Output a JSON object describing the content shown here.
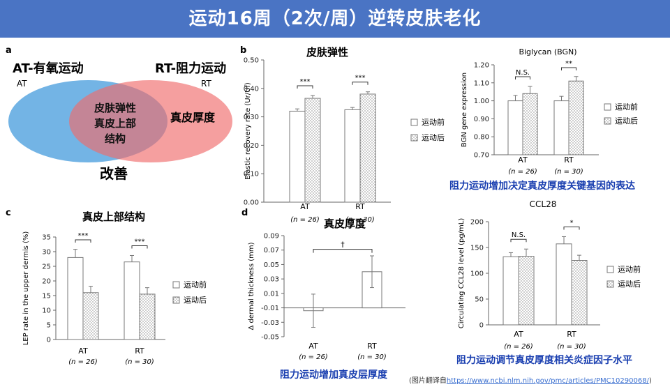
{
  "header": {
    "title": "运动16周（2次/周）逆转皮肤老化"
  },
  "panel_a": {
    "letter": "a",
    "at_title": "AT-有氧运动",
    "rt_title": "RT-阻力运动",
    "at_small": "AT",
    "rt_small": "RT",
    "overlap_lines": [
      "皮肤弹性",
      "真皮上部",
      "结构"
    ],
    "rt_only": "真皮厚度",
    "caption": "改善",
    "colors": {
      "at": "#5aa7e0",
      "rt": "#f06b6b",
      "overlap": "#b3505a"
    }
  },
  "legend": {
    "before": "运动前",
    "after": "运动后"
  },
  "group_labels": {
    "at": "AT",
    "rt": "RT",
    "n_at": "(n = 26)",
    "n_rt": "(n = 30)"
  },
  "chart_data": [
    {
      "id": "b",
      "letter": "b",
      "type": "bar",
      "title": "皮肤弹性",
      "ylabel": "Elastic recovery rate (Ur/Uf)",
      "ylim": [
        0.0,
        0.5
      ],
      "yticks": [
        "0.00",
        "0.10",
        "0.20",
        "0.30",
        "0.40",
        "0.50"
      ],
      "categories": [
        "AT",
        "RT"
      ],
      "series": [
        {
          "name": "运动前",
          "values": [
            0.32,
            0.325
          ],
          "err": [
            0.008,
            0.008
          ]
        },
        {
          "name": "运动后",
          "values": [
            0.365,
            0.38
          ],
          "err": [
            0.01,
            0.008
          ]
        }
      ],
      "sig": [
        "***",
        "***"
      ]
    },
    {
      "id": "bgn",
      "type": "bar",
      "title": "Biglycan (BGN)",
      "ylabel": "BGN gene expression",
      "ylim": [
        0.7,
        1.2
      ],
      "yticks": [
        "0.70",
        "0.80",
        "0.90",
        "1.00",
        "1.10",
        "1.20"
      ],
      "categories": [
        "AT",
        "RT"
      ],
      "series": [
        {
          "name": "运动前",
          "values": [
            1.0,
            1.0
          ],
          "err": [
            0.03,
            0.025
          ]
        },
        {
          "name": "运动后",
          "values": [
            1.04,
            1.11
          ],
          "err": [
            0.04,
            0.025
          ]
        }
      ],
      "sig": [
        "N.S.",
        "**"
      ],
      "caption": "阻力运动增加决定真皮厚度关键基因的表达"
    },
    {
      "id": "c",
      "letter": "c",
      "type": "bar",
      "title": "真皮上部结构",
      "ylabel": "LEP rate in the upper dermis (%)",
      "ylim": [
        0,
        35
      ],
      "yticks": [
        "0",
        "5",
        "10",
        "15",
        "20",
        "25",
        "30",
        "35"
      ],
      "categories": [
        "AT",
        "RT"
      ],
      "series": [
        {
          "name": "运动前",
          "values": [
            28,
            26.5
          ],
          "err": [
            2.8,
            2.2
          ]
        },
        {
          "name": "运动后",
          "values": [
            16,
            15.5
          ],
          "err": [
            2.2,
            2.2
          ]
        }
      ],
      "sig": [
        "***",
        "***"
      ]
    },
    {
      "id": "d",
      "letter": "d",
      "type": "bar",
      "title": "真皮厚度",
      "ylabel": "Δ dermal thickness (mm)",
      "ylim": [
        -0.05,
        0.09
      ],
      "yticks": [
        "-0.05",
        "-0.03",
        "-0.01",
        "0.01",
        "0.03",
        "0.05",
        "0.07",
        "0.09"
      ],
      "categories": [
        "AT",
        "RT"
      ],
      "values": [
        -0.014,
        0.04
      ],
      "err": [
        0.023,
        0.022
      ],
      "sig": "†",
      "caption": "阻力运动增加真皮层厚度"
    },
    {
      "id": "ccl",
      "type": "bar",
      "title": "CCL28",
      "ylabel": "Circulating CCL28 level (pg/mL)",
      "ylim": [
        0,
        200
      ],
      "yticks": [
        "0",
        "50",
        "100",
        "150",
        "200"
      ],
      "categories": [
        "AT",
        "RT"
      ],
      "series": [
        {
          "name": "运动前",
          "values": [
            132,
            157
          ],
          "err": [
            8,
            14
          ]
        },
        {
          "name": "运动后",
          "values": [
            133,
            125
          ],
          "err": [
            14,
            10
          ]
        }
      ],
      "sig": [
        "N.S.",
        "*"
      ],
      "caption": "阻力运动调节真皮厚度相关炎症因子水平"
    }
  ],
  "source": {
    "prefix": "(图片翻译自",
    "url": "https://www.ncbi.nlm.nih.gov/pmc/articles/PMC10290068/",
    "suffix": ")"
  }
}
